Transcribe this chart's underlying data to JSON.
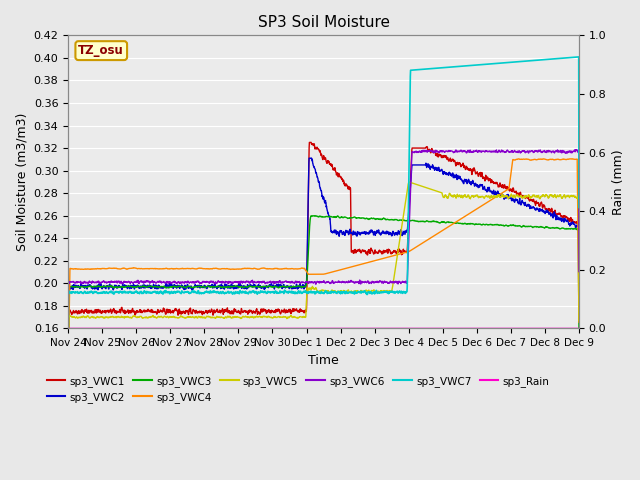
{
  "title": "SP3 Soil Moisture",
  "ylabel_left": "Soil Moisture (m3/m3)",
  "ylabel_right": "Rain (mm)",
  "xlabel": "Time",
  "ylim_left": [
    0.16,
    0.42
  ],
  "ylim_right": [
    0.0,
    1.0
  ],
  "fig_bg": "#e8e8e8",
  "plot_bg": "#ebebeb",
  "timezone_label": "TZ_osu",
  "series_colors": {
    "sp3_VWC1": "#cc0000",
    "sp3_VWC2": "#0000cc",
    "sp3_VWC3": "#00aa00",
    "sp3_VWC4": "#ff8800",
    "sp3_VWC5": "#cccc00",
    "sp3_VWC6": "#8800cc",
    "sp3_VWC7": "#00cccc",
    "sp3_Rain": "#ff00cc"
  },
  "xtick_labels": [
    "Nov 24",
    "Nov 25",
    "Nov 26",
    "Nov 27",
    "Nov 28",
    "Nov 29",
    "Nov 30",
    "Dec 1",
    "Dec 2",
    "Dec 3",
    "Dec 4",
    "Dec 5",
    "Dec 6",
    "Dec 7",
    "Dec 8",
    "Dec 9"
  ],
  "xtick_positions": [
    0,
    1,
    2,
    3,
    4,
    5,
    6,
    7,
    8,
    9,
    10,
    11,
    12,
    13,
    14,
    15
  ],
  "yticks_left": [
    0.16,
    0.18,
    0.2,
    0.22,
    0.24,
    0.26,
    0.28,
    0.3,
    0.32,
    0.34,
    0.36,
    0.38,
    0.4,
    0.42
  ],
  "yticks_right": [
    0.0,
    0.2,
    0.4,
    0.6,
    0.8,
    1.0
  ],
  "legend_order": [
    "sp3_VWC1",
    "sp3_VWC2",
    "sp3_VWC3",
    "sp3_VWC4",
    "sp3_VWC5",
    "sp3_VWC6",
    "sp3_VWC7",
    "sp3_Rain"
  ]
}
